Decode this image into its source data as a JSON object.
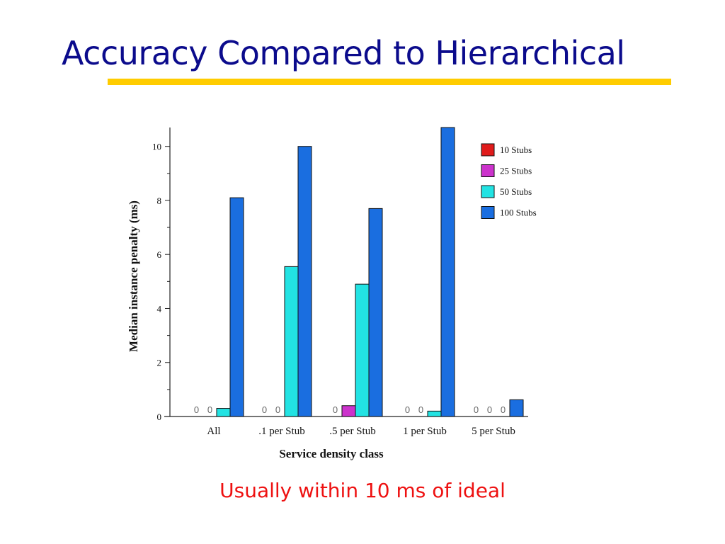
{
  "slide": {
    "title": "Accuracy Compared to Hierarchical",
    "caption": "Usually within 10 ms of ideal"
  },
  "colors": {
    "title": "#0b0b8c",
    "underline": "#ffcc00",
    "caption": "#ee1111"
  },
  "chart_data": {
    "type": "bar",
    "title": "",
    "xlabel": "Service density class",
    "ylabel": "Median instance penalty (ms)",
    "ylim": [
      0,
      10.7
    ],
    "yticks": [
      0,
      2,
      4,
      6,
      8,
      10
    ],
    "grid": false,
    "legend_position": "top-right",
    "categories": [
      "All",
      ".1 per Stub",
      ".5 per Stub",
      "1 per Stub",
      "5 per Stub"
    ],
    "series": [
      {
        "name": "10 Stubs",
        "color": "#e01b1b",
        "values": [
          0,
          0,
          0,
          0,
          0
        ]
      },
      {
        "name": "25 Stubs",
        "color": "#cc33cc",
        "values": [
          0,
          0,
          0.4,
          0,
          0
        ]
      },
      {
        "name": "50 Stubs",
        "color": "#22e3e3",
        "values": [
          0.3,
          5.55,
          4.9,
          0.2,
          0
        ]
      },
      {
        "name": "100 Stubs",
        "color": "#1a6ee0",
        "values": [
          8.1,
          10.0,
          7.7,
          10.7,
          0.62
        ]
      }
    ]
  }
}
